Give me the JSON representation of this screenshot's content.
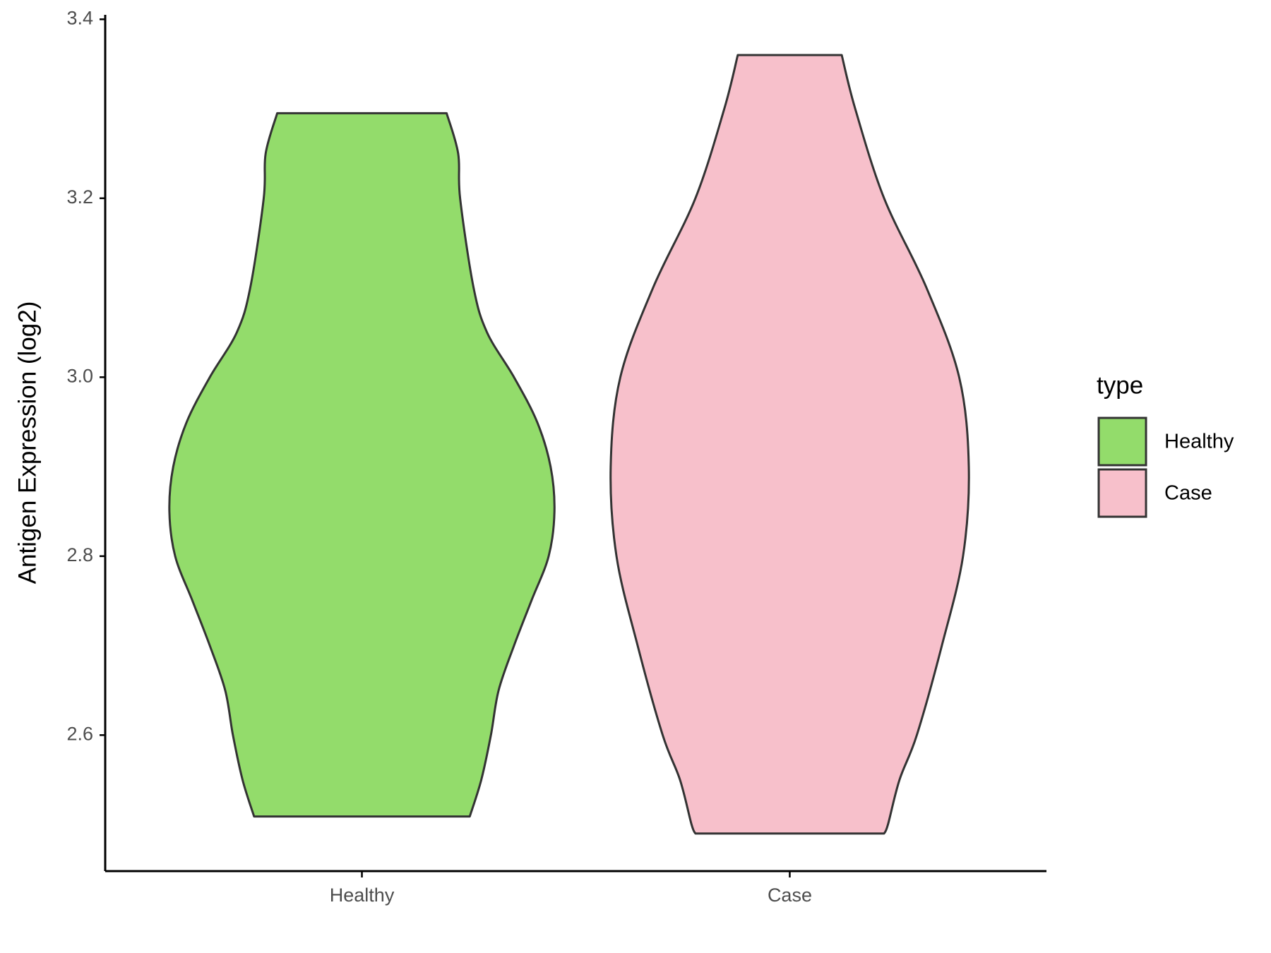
{
  "chart_data": {
    "type": "violin",
    "y_label": "Antigen Expression (log2)",
    "categories": [
      "Healthy",
      "Case"
    ],
    "legend_title": "type",
    "legend": "right",
    "series": [
      {
        "name": "Healthy",
        "color": "#93dc6b",
        "y": [
          3.295,
          3.25,
          3.2,
          3.1,
          3.05,
          3.0,
          2.95,
          2.9,
          2.85,
          2.8,
          2.75,
          2.7,
          2.65,
          2.6,
          2.55,
          2.509
        ],
        "width": [
          0.44,
          0.5,
          0.51,
          0.58,
          0.65,
          0.79,
          0.91,
          0.98,
          1.0,
          0.97,
          0.88,
          0.79,
          0.71,
          0.67,
          0.62,
          0.56
        ]
      },
      {
        "name": "Case",
        "color": "#f7c0cb",
        "y": [
          3.36,
          3.3,
          3.2,
          3.1,
          3.0,
          2.9,
          2.8,
          2.7,
          2.6,
          2.55,
          2.5,
          2.49
        ],
        "width": [
          0.27,
          0.34,
          0.49,
          0.71,
          0.88,
          0.93,
          0.9,
          0.79,
          0.66,
          0.57,
          0.51,
          0.49
        ]
      }
    ],
    "ylim": [
      2.448,
      3.405
    ],
    "yticks": [
      2.6,
      2.8,
      {
        "value": 3,
        "label": "3.0"
      },
      3.2,
      3.4
    ]
  }
}
